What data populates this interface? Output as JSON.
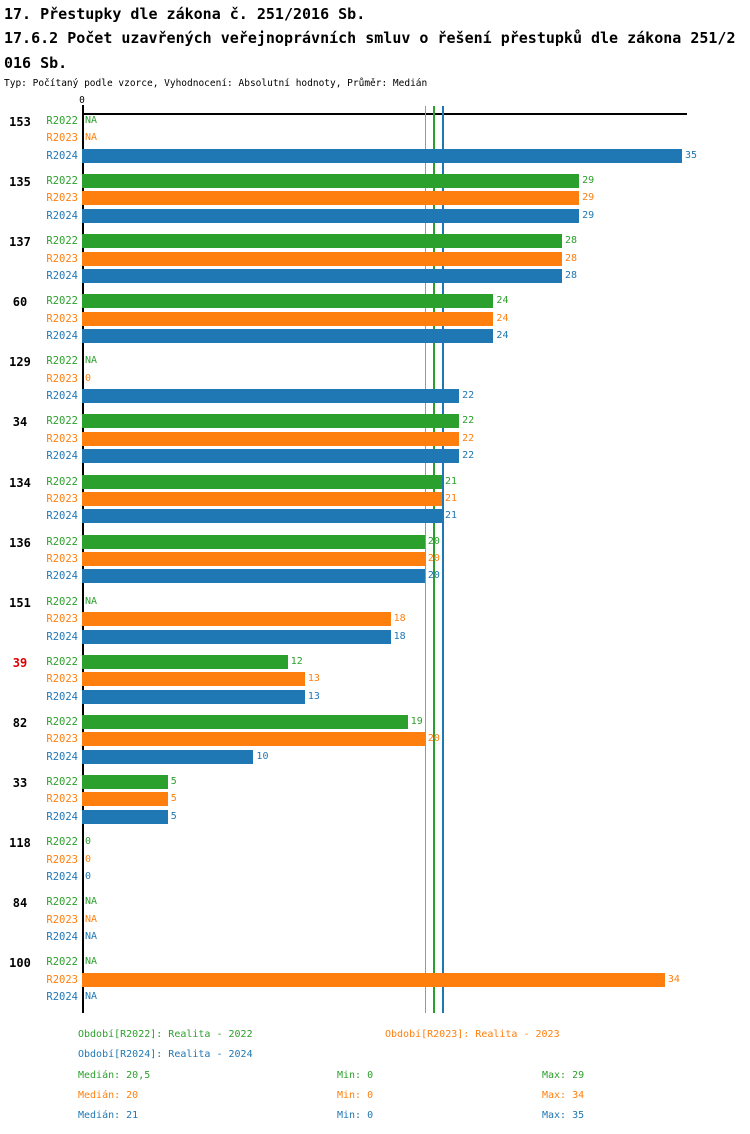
{
  "page": {
    "title": "17. Přestupky dle zákona č. 251/2016 Sb.",
    "subtitle_line1": "17.6.2 Počet uzavřených veřejnoprávních smluv o řešení přestupků dle zákona 251/2",
    "subtitle_line2": "016 Sb.",
    "meta_line": "Typ: Počítaný podle vzorce, Vyhodnocení: Absolutní hodnoty, Průměr: Medián"
  },
  "chart_data": {
    "type": "bar",
    "orientation": "horizontal",
    "title": "17.6.2 Počet uzavřených veřejnoprávních smluv o řešení přestupků dle zákona 251/2016 Sb.",
    "axis": {
      "min": 0,
      "max": 35,
      "tick_labels": [
        "0"
      ],
      "na_text": "NA"
    },
    "colors": {
      "r2022": "#2ca02c",
      "r2023": "#ff7f0e",
      "r2024": "#1f77b4",
      "highlight_category": "#e00000",
      "axis": "#000000"
    },
    "series": [
      {
        "id": "R2022",
        "label": "R2022",
        "color": "#2ca02c",
        "legend": "Období[R2022]: Realita - 2022",
        "median": 20.5,
        "median_label": "Medián: 20,5",
        "min_label": "Min: 0",
        "max_label": "Max: 29"
      },
      {
        "id": "R2023",
        "label": "R2023",
        "color": "#ff7f0e",
        "legend": "Období[R2023]: Realita - 2023",
        "median": 20,
        "median_label": "Medián: 20",
        "min_label": "Min: 0",
        "max_label": "Max: 34"
      },
      {
        "id": "R2024",
        "label": "R2024",
        "color": "#1f77b4",
        "legend": "Období[R2024]: Realita - 2024",
        "median": 21,
        "median_label": "Medián: 21",
        "min_label": "Min: 0",
        "max_label": "Max: 35"
      }
    ],
    "categories": [
      {
        "label": "153",
        "highlight": false,
        "values": [
          "NA",
          "NA",
          35
        ]
      },
      {
        "label": "135",
        "highlight": false,
        "values": [
          29,
          29,
          29
        ]
      },
      {
        "label": "137",
        "highlight": false,
        "values": [
          28,
          28,
          28
        ]
      },
      {
        "label": "60",
        "highlight": false,
        "values": [
          24,
          24,
          24
        ]
      },
      {
        "label": "129",
        "highlight": false,
        "values": [
          "NA",
          0,
          22
        ]
      },
      {
        "label": "34",
        "highlight": false,
        "values": [
          22,
          22,
          22
        ]
      },
      {
        "label": "134",
        "highlight": false,
        "values": [
          21,
          21,
          21
        ]
      },
      {
        "label": "136",
        "highlight": false,
        "values": [
          20,
          20,
          20
        ]
      },
      {
        "label": "151",
        "highlight": false,
        "values": [
          "NA",
          18,
          18
        ]
      },
      {
        "label": "39",
        "highlight": true,
        "values": [
          12,
          13,
          13
        ]
      },
      {
        "label": "82",
        "highlight": false,
        "values": [
          19,
          20,
          10
        ]
      },
      {
        "label": "33",
        "highlight": false,
        "values": [
          5,
          5,
          5
        ]
      },
      {
        "label": "118",
        "highlight": false,
        "values": [
          0,
          0,
          0
        ]
      },
      {
        "label": "84",
        "highlight": false,
        "values": [
          "NA",
          "NA",
          "NA"
        ]
      },
      {
        "label": "100",
        "highlight": false,
        "values": [
          "NA",
          34,
          "NA"
        ]
      }
    ],
    "legend_position": "bottom"
  }
}
